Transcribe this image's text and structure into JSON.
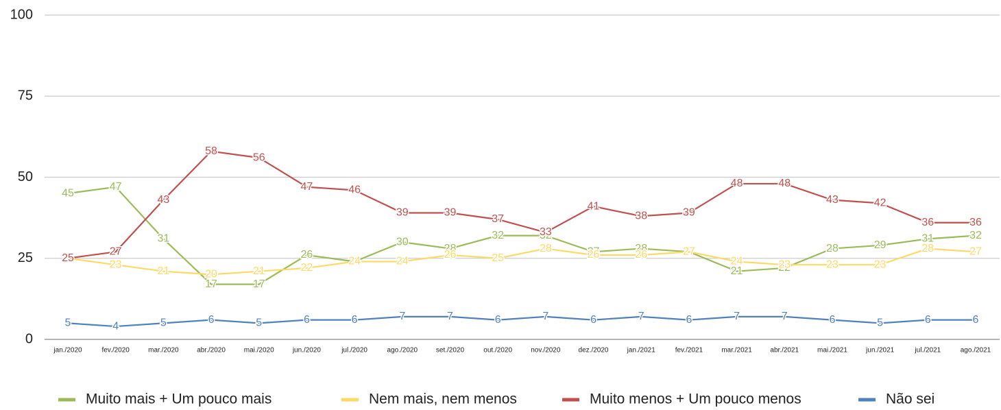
{
  "chart_data": {
    "type": "line",
    "categories": [
      "jan./2020",
      "fev./2020",
      "mar./2020",
      "abr./2020",
      "mai./2020",
      "jun./2020",
      "jul./2020",
      "ago./2020",
      "set./2020",
      "out./2020",
      "nov./2020",
      "dez./2020",
      "jan./2021",
      "fev./2021",
      "mar./2021",
      "abr./2021",
      "mai./2021",
      "jun./2021",
      "jul./2021",
      "ago./2021"
    ],
    "series": [
      {
        "name": "Muito mais + Um pouco mais",
        "color": "#9bbb59",
        "values": [
          45,
          47,
          31,
          17,
          17,
          26,
          24,
          30,
          28,
          32,
          32,
          27,
          28,
          27,
          21,
          22,
          28,
          29,
          31,
          32
        ]
      },
      {
        "name": "Nem mais, nem menos",
        "color": "#ffd966",
        "values": [
          25,
          23,
          21,
          20,
          21,
          22,
          24,
          24,
          26,
          25,
          28,
          26,
          26,
          27,
          24,
          23,
          23,
          23,
          28,
          27
        ]
      },
      {
        "name": "Muito menos + Um pouco menos",
        "color": "#c0504d",
        "values": [
          25,
          27,
          43,
          58,
          56,
          47,
          46,
          39,
          39,
          37,
          33,
          41,
          38,
          39,
          48,
          48,
          43,
          42,
          36,
          36
        ]
      },
      {
        "name": "Não sei",
        "color": "#4f81bd",
        "values": [
          5,
          4,
          5,
          6,
          5,
          6,
          6,
          7,
          7,
          6,
          7,
          6,
          7,
          6,
          7,
          7,
          6,
          5,
          6,
          6
        ]
      }
    ],
    "ylim": [
      0,
      100
    ],
    "yticks": [
      0,
      25,
      50,
      75,
      100
    ],
    "grid": true,
    "data_labels": true,
    "legend": "bottom"
  }
}
